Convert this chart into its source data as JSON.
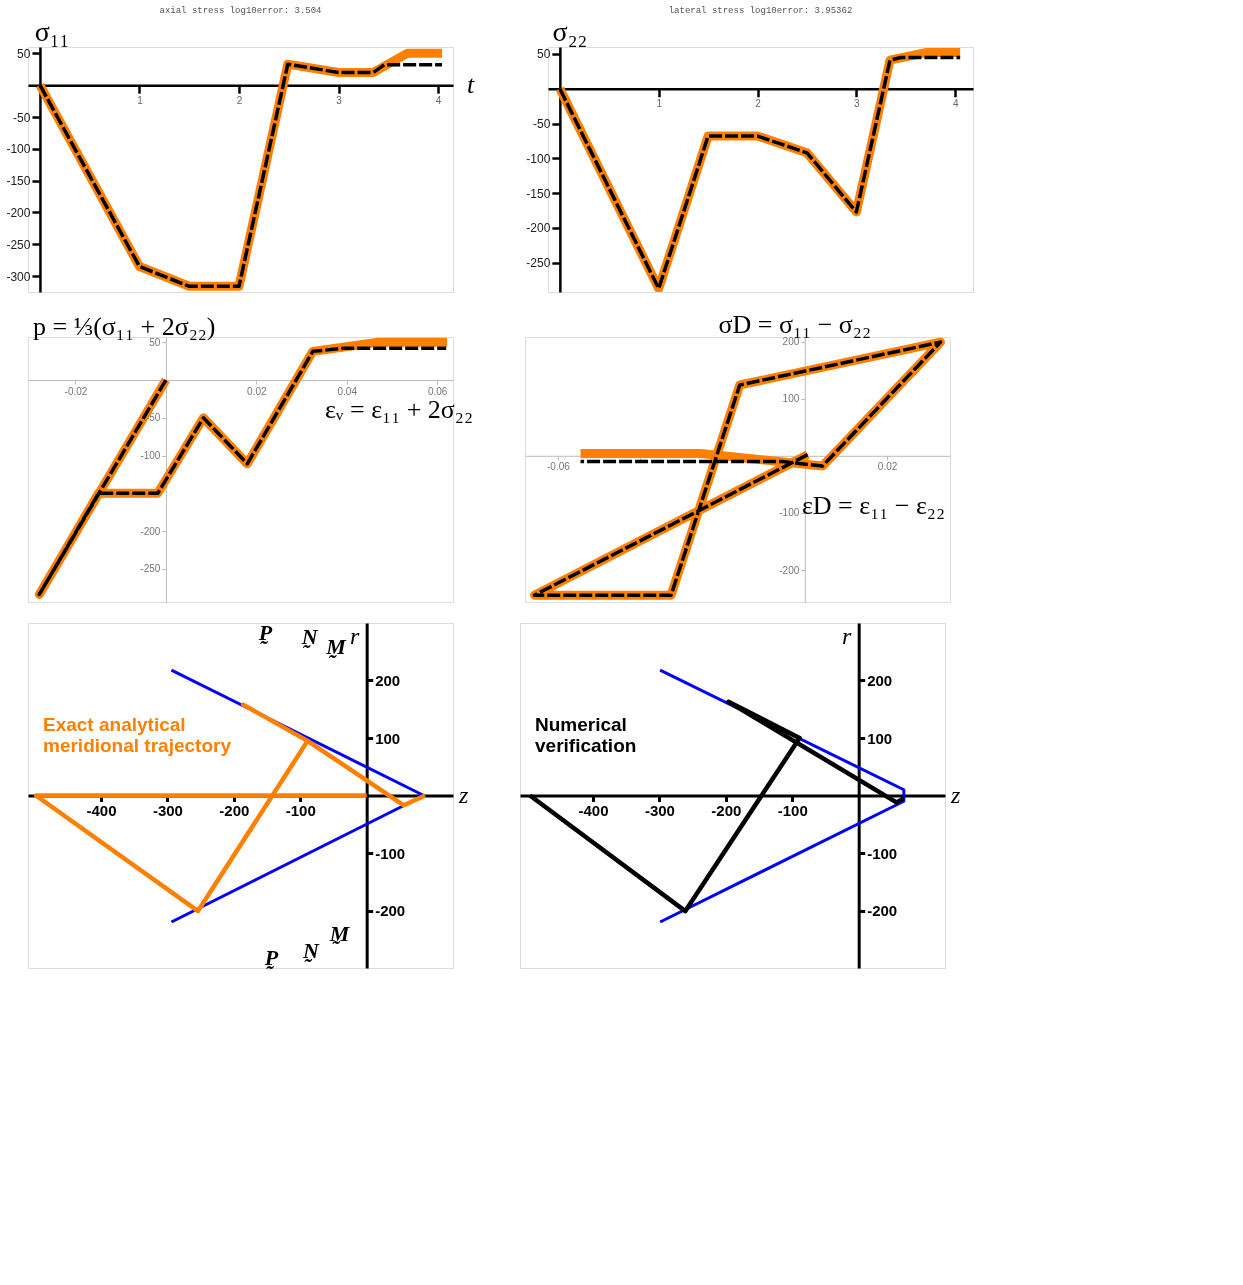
{
  "chart_data": [
    {
      "type": "line",
      "title": "axial stress log10error:  3.504",
      "ylabel": "σ₁₁",
      "xlabel": "t",
      "xlim": [
        -0.12,
        4.15
      ],
      "ylim": [
        -325,
        60
      ],
      "xticks": [
        1,
        2,
        3,
        4
      ],
      "yticks": [
        50,
        -50,
        -100,
        -150,
        -200,
        -250,
        -300
      ],
      "series": [
        {
          "color": "#ff8000",
          "line_style": "solid",
          "x": [
            0,
            1,
            1.5,
            2,
            2.49,
            3,
            3.35,
            3.69,
            4.04
          ],
          "values": [
            0,
            -285,
            -316,
            -316,
            33,
            20,
            20,
            50,
            50
          ]
        },
        {
          "color": "#000000",
          "line_style": "dashed",
          "x": [
            0,
            1,
            1.5,
            2,
            2.49,
            3,
            3.35,
            3.46,
            4.04
          ],
          "values": [
            0,
            -285,
            -316,
            -316,
            33,
            20,
            20,
            32,
            32
          ]
        }
      ]
    },
    {
      "type": "line",
      "title": "lateral stress log10error:  3.95362",
      "ylabel": "σ₂₂",
      "xlim": [
        -0.12,
        4.18
      ],
      "ylim": [
        -292,
        60
      ],
      "xticks": [
        1,
        2,
        3,
        4
      ],
      "yticks": [
        50,
        -50,
        -100,
        -150,
        -200,
        -250
      ],
      "series": [
        {
          "color": "#ff8000",
          "line_style": "solid",
          "x": [
            0,
            1,
            1.5,
            2,
            2.5,
            3,
            3.34,
            3.7,
            4.05
          ],
          "values": [
            0,
            -287,
            -68,
            -68,
            -92,
            -177,
            41,
            52,
            52
          ]
        },
        {
          "color": "#000000",
          "line_style": "dashed",
          "x": [
            0,
            1,
            1.5,
            2,
            2.5,
            3,
            3.34,
            3.45,
            4.05
          ],
          "values": [
            0,
            -287,
            -68,
            -68,
            -92,
            -177,
            41,
            45,
            45
          ]
        }
      ]
    },
    {
      "type": "line",
      "ylabel": "p = ⅓(σ₁₁ + 2σ₂₂)",
      "xlabel": "εᵥ = ε₁₁ + 2σ₂₂",
      "xlim": [
        -0.0305,
        0.0635
      ],
      "ylim": [
        -294,
        57
      ],
      "xticks": [
        -0.02,
        0.02,
        0.04,
        0.06
      ],
      "yticks": [
        50,
        -50,
        -100,
        -200,
        -250
      ],
      "series": [
        {
          "color": "#ff8000",
          "line_style": "solid",
          "x": [
            0,
            -0.028,
            -0.0149,
            -0.0018,
            0.0083,
            0.018,
            0.0325,
            0.047,
            0.0622
          ],
          "values": [
            0,
            -284,
            -150,
            -150,
            -50,
            -111,
            38,
            50,
            50
          ]
        },
        {
          "color": "#000000",
          "line_style": "dashed",
          "x": [
            0,
            -0.028,
            -0.0149,
            -0.0018,
            0.0083,
            0.018,
            0.0325,
            0.0393,
            0.062
          ],
          "values": [
            0,
            -284,
            -150,
            -150,
            -50,
            -111,
            38,
            42,
            42
          ]
        }
      ]
    },
    {
      "type": "line",
      "ylabel": "σD = σ₁₁ − σ₂₂",
      "xlabel": "εD = ε₁₁ − ε₂₂",
      "xlim": [
        -0.068,
        0.0353
      ],
      "ylim": [
        -256,
        208
      ],
      "xticks": [
        -0.06,
        {
          "value": -0.04,
          "label": null
        },
        {
          "value": -0.02,
          "label": null
        },
        0.02
      ],
      "yticks": [
        200,
        100,
        -100,
        -200
      ],
      "series": [
        {
          "color": "#ff8000",
          "line_style": "solid",
          "x": [
            0.0007,
            -0.0657,
            -0.0325,
            -0.0158,
            0.033,
            0.0043,
            -0.0253,
            -0.0545
          ],
          "values": [
            2,
            -244,
            -244,
            124,
            199,
            -18,
            4,
            4
          ]
        },
        {
          "color": "#000000",
          "line_style": "dashed",
          "x": [
            0.0007,
            -0.0657,
            -0.0325,
            -0.0158,
            0.033,
            0.0043,
            -0.0055,
            -0.0545
          ],
          "values": [
            2,
            -244,
            -244,
            124,
            199,
            -18,
            -10,
            -10
          ]
        }
      ]
    },
    {
      "type": "line",
      "xlabel": "z",
      "ylabel": "r",
      "xlim": [
        -510,
        130
      ],
      "ylim": [
        -300,
        300
      ],
      "xticks": [
        -400,
        -300,
        -200,
        -100
      ],
      "yticks": [
        -200,
        -100,
        100,
        200
      ],
      "annotations": [
        "Exact analytical\nmeridional trajectory",
        "P̰",
        "N̰",
        "M̰",
        "P̰",
        "N̰",
        "M̰"
      ],
      "series": [
        {
          "color": "#0000ff",
          "line_style": "solid",
          "x": [
            -294,
            86,
            -294
          ],
          "values": [
            218,
            0,
            -220
          ]
        },
        {
          "color": "#ff8000",
          "line_style": "solid",
          "x": [
            0,
            -498,
            -254,
            -89,
            -186,
            -89,
            56,
            88
          ],
          "values": [
            0,
            0,
            -201,
            95,
            158,
            95,
            -17,
            0
          ]
        }
      ]
    },
    {
      "type": "line",
      "xlabel": "z",
      "ylabel": "r",
      "xlim": [
        -510,
        130
      ],
      "ylim": [
        -300,
        300
      ],
      "xticks": [
        -400,
        -300,
        -200,
        -100
      ],
      "yticks": [
        -200,
        -100,
        100,
        200
      ],
      "annotations": [
        "Numerical\nverification"
      ],
      "series": [
        {
          "color": "#0000ff",
          "line_style": "solid",
          "x": [
            -299,
            68,
            68,
            -299
          ],
          "values": [
            218,
            10,
            -10,
            -220
          ]
        },
        {
          "color": "#000000",
          "line_style": "solid",
          "x": [
            -495,
            -261,
            -89,
            -196,
            57,
            68
          ],
          "values": [
            0,
            -201,
            100,
            163,
            -12,
            -5
          ]
        }
      ]
    }
  ]
}
